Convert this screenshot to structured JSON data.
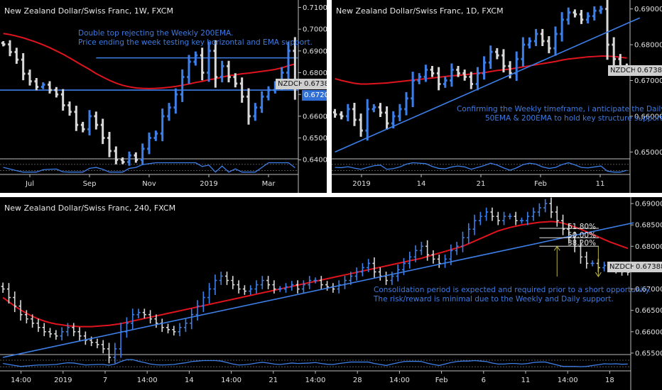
{
  "colors": {
    "up_bar": "#3d7fe8",
    "down_bar": "#d8d8d8",
    "ema_200": "#e0141e",
    "trendline": "#3d7fe8",
    "support_line": "#3d7fe8",
    "oscillator": "#3d7fe8",
    "background": "#000000",
    "price_tag_bg": "#cfcfcf",
    "support_tag_bg": "#2f6fd6"
  },
  "weekly": {
    "title": "New Zealand Dollar/Swiss Franc, 1W, FXCM",
    "note": "Double top rejecting the Weekly 200EMA.\nPrice ending the week testing key horizontal and EMA support.",
    "current_tag": "NZDCHF",
    "current_price": "0.67388",
    "support_price": "0.67200"
  },
  "daily": {
    "title": "New Zealand Dollar/Swiss Franc, 1D, FXCM",
    "note": "Confirming the Weekly timeframe, i anticipate the Daily\n50EMA & 200EMA to hold key structure support.",
    "current_tag": "NZDCHF",
    "current_price": "0.67388"
  },
  "h4": {
    "title": "New Zealand Dollar/Swiss Franc, 240, FXCM",
    "note": "Consolidation period is expected and required prior to a short opportunity.\nThe risk/reward is minimal due to the Weekly and Daily support.",
    "current_tag": "NZDCHF",
    "current_price": "0.67388",
    "fib_levels": [
      "61.80%",
      "50.00%",
      "38.20%"
    ]
  },
  "chart_data": [
    {
      "type": "ohlc",
      "timeframe": "1W",
      "title": "New Zealand Dollar/Swiss Franc, 1W, FXCM",
      "y_ticks": [
        "0.71000",
        "0.70000",
        "0.69000",
        "0.68000",
        "0.67000",
        "0.66000",
        "0.65000",
        "0.64000"
      ],
      "x_ticks": [
        "Jul",
        "Sep",
        "Nov",
        "2019",
        "Mar"
      ],
      "ylim": [
        0.6378,
        0.7134
      ],
      "closes": [
        0.693,
        0.6895,
        0.686,
        0.6795,
        0.676,
        0.6735,
        0.6745,
        0.672,
        0.67,
        0.665,
        0.662,
        0.656,
        0.654,
        0.66,
        0.656,
        0.65,
        0.644,
        0.64,
        0.639,
        0.642,
        0.64,
        0.645,
        0.65,
        0.652,
        0.66,
        0.664,
        0.67,
        0.678,
        0.685,
        0.688,
        0.68,
        0.69,
        0.678,
        0.683,
        0.678,
        0.675,
        0.669,
        0.66,
        0.664,
        0.669,
        0.672,
        0.6745,
        0.68,
        0.69,
        0.6739
      ],
      "ema_200": [
        0.698,
        0.6975,
        0.6968,
        0.696,
        0.695,
        0.694,
        0.6928,
        0.6915,
        0.69,
        0.6885,
        0.6868,
        0.685,
        0.6832,
        0.6815,
        0.6796,
        0.678,
        0.6765,
        0.6752,
        0.6742,
        0.6735,
        0.673,
        0.6728,
        0.6727,
        0.6728,
        0.673,
        0.6733,
        0.6737,
        0.6742,
        0.6748,
        0.6755,
        0.676,
        0.6768,
        0.6772,
        0.678,
        0.6786,
        0.679,
        0.6795,
        0.6798,
        0.6802,
        0.6806,
        0.681,
        0.6815,
        0.6822,
        0.6832,
        0.684
      ],
      "horizontal_levels": [
        0.6868,
        0.672
      ]
    },
    {
      "type": "ohlc",
      "timeframe": "1D",
      "title": "New Zealand Dollar/Swiss Franc, 1D, FXCM",
      "y_ticks": [
        "0.69000",
        "0.68000",
        "0.67000",
        "0.66000",
        "0.65000"
      ],
      "x_ticks": [
        "2019",
        "14",
        "21",
        "Feb",
        "11"
      ],
      "ylim": [
        0.6465,
        0.6925
      ],
      "closes": [
        0.6605,
        0.66,
        0.662,
        0.659,
        0.656,
        0.662,
        0.6625,
        0.661,
        0.658,
        0.66,
        0.662,
        0.665,
        0.67,
        0.671,
        0.673,
        0.672,
        0.669,
        0.67,
        0.673,
        0.672,
        0.671,
        0.669,
        0.672,
        0.675,
        0.678,
        0.677,
        0.674,
        0.672,
        0.676,
        0.68,
        0.681,
        0.683,
        0.681,
        0.679,
        0.683,
        0.687,
        0.689,
        0.6885,
        0.687,
        0.688,
        0.6895,
        0.69,
        0.68,
        0.676,
        0.674,
        0.6739
      ],
      "ema_50": [
        0.6705,
        0.67,
        0.6696,
        0.6692,
        0.669,
        0.669,
        0.6691,
        0.6692,
        0.6693,
        0.6695,
        0.6697,
        0.6699,
        0.6701,
        0.6703,
        0.6705,
        0.6707,
        0.6709,
        0.6711,
        0.6713,
        0.6714,
        0.6716,
        0.6718,
        0.672,
        0.6722,
        0.6725,
        0.6728,
        0.673,
        0.6732,
        0.6735,
        0.6738,
        0.6741,
        0.6744,
        0.6747,
        0.675,
        0.6753,
        0.6757,
        0.676,
        0.6762,
        0.6764,
        0.6766,
        0.6767,
        0.6768,
        0.6768,
        0.6767,
        0.6765,
        0.6763
      ],
      "trendline": [
        [
          0,
          0.65
        ],
        [
          47,
          0.6875
        ]
      ]
    },
    {
      "type": "ohlc",
      "timeframe": "240",
      "title": "New Zealand Dollar/Swiss Franc, 240, FXCM",
      "y_ticks": [
        "0.69000",
        "0.68500",
        "0.68000",
        "0.67500",
        "0.67000",
        "0.66500",
        "0.66000",
        "0.65500"
      ],
      "x_ticks": [
        "14:00",
        "2019",
        "7",
        "14:00",
        "14",
        "14:00",
        "21",
        "14:00",
        "28",
        "14:00",
        "Feb",
        "6",
        "11",
        "14:00",
        "18"
      ],
      "ylim": [
        0.653,
        0.6915
      ],
      "closes": [
        0.67,
        0.668,
        0.666,
        0.664,
        0.663,
        0.662,
        0.661,
        0.66,
        0.6595,
        0.659,
        0.66,
        0.661,
        0.66,
        0.659,
        0.658,
        0.6575,
        0.657,
        0.656,
        0.654,
        0.656,
        0.66,
        0.662,
        0.664,
        0.6645,
        0.664,
        0.663,
        0.662,
        0.661,
        0.6605,
        0.66,
        0.661,
        0.662,
        0.664,
        0.666,
        0.668,
        0.67,
        0.672,
        0.673,
        0.672,
        0.671,
        0.67,
        0.6695,
        0.67,
        0.671,
        0.672,
        0.671,
        0.67,
        0.67,
        0.6705,
        0.671,
        0.67,
        0.671,
        0.672,
        0.672,
        0.671,
        0.6705,
        0.67,
        0.671,
        0.672,
        0.673,
        0.674,
        0.675,
        0.676,
        0.674,
        0.673,
        0.672,
        0.673,
        0.6745,
        0.676,
        0.6775,
        0.679,
        0.68,
        0.678,
        0.677,
        0.676,
        0.677,
        0.679,
        0.68,
        0.682,
        0.684,
        0.686,
        0.687,
        0.688,
        0.687,
        0.686,
        0.687,
        0.687,
        0.686,
        0.686,
        0.687,
        0.688,
        0.689,
        0.69,
        0.688,
        0.686,
        0.684,
        0.682,
        0.68,
        0.6775,
        0.676,
        0.676,
        0.675,
        0.6755,
        0.675,
        0.6745,
        0.674,
        0.6739
      ],
      "ema_200": [
        0.668,
        0.667,
        0.666,
        0.6651,
        0.6643,
        0.6636,
        0.663,
        0.6625,
        0.6621,
        0.6618,
        0.6616,
        0.6614,
        0.6613,
        0.6612,
        0.6612,
        0.6612,
        0.6613,
        0.6614,
        0.6615,
        0.6617,
        0.6619,
        0.6622,
        0.6625,
        0.6628,
        0.6631,
        0.6634,
        0.6637,
        0.664,
        0.6643,
        0.6646,
        0.6649,
        0.6652,
        0.6655,
        0.6658,
        0.6661,
        0.6664,
        0.6667,
        0.667,
        0.6673,
        0.6676,
        0.6679,
        0.6682,
        0.6685,
        0.6688,
        0.6691,
        0.6694,
        0.6697,
        0.67,
        0.6703,
        0.6706,
        0.6709,
        0.6712,
        0.6715,
        0.6718,
        0.6721,
        0.6724,
        0.6727,
        0.673,
        0.6733,
        0.6736,
        0.6739,
        0.6742,
        0.6745,
        0.6748,
        0.6751,
        0.6754,
        0.6757,
        0.676,
        0.6763,
        0.6766,
        0.6769,
        0.6772,
        0.6776,
        0.678,
        0.6784,
        0.6788,
        0.6792,
        0.6796,
        0.68,
        0.6806,
        0.6812,
        0.6818,
        0.6824,
        0.683,
        0.6836,
        0.684,
        0.6844,
        0.6847,
        0.685,
        0.6852,
        0.6854,
        0.6856,
        0.6857,
        0.6858,
        0.6857,
        0.6854,
        0.685,
        0.6845,
        0.684,
        0.6834,
        0.6828,
        0.6822,
        0.6816,
        0.681,
        0.6805,
        0.68,
        0.6795
      ],
      "trendline": [
        [
          0,
          0.654
        ],
        [
          107,
          0.6855
        ]
      ],
      "fib_retracement": [
        {
          "label": "61.80%",
          "value": 0.6842
        },
        {
          "label": "50.00%",
          "value": 0.682
        },
        {
          "label": "38.20%",
          "value": 0.68
        }
      ]
    }
  ]
}
